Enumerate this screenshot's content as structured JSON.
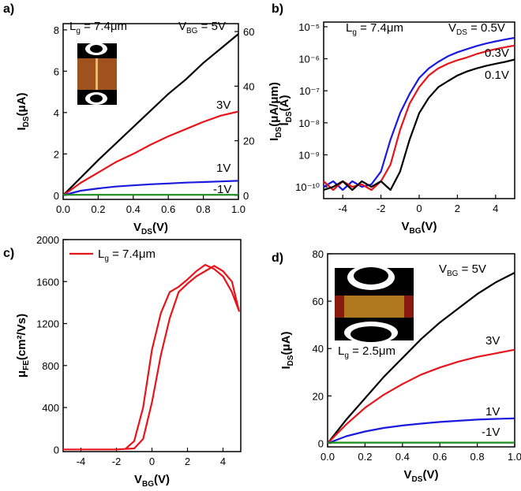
{
  "chart_data": [
    {
      "type": "line",
      "panel": "a)",
      "xlabel": {
        "text": "V",
        "sub": "DS",
        "after": "(V)"
      },
      "ylabel": {
        "text": "I",
        "sub": "DS",
        "after": "(μA)"
      },
      "y2label": {
        "text": "I",
        "sub": "DS",
        "after": "(μA/μm)"
      },
      "x": [
        0,
        0.1,
        0.2,
        0.3,
        0.4,
        0.5,
        0.6,
        0.7,
        0.8,
        0.9,
        1.0
      ],
      "xlim": [
        0,
        1.0
      ],
      "xticks": [
        {
          "value": 0,
          "label": "0.0"
        },
        0.2,
        0.4,
        0.6,
        0.8,
        {
          "value": 1,
          "label": "1.0"
        }
      ],
      "ylim": [
        -0.2,
        8.3
      ],
      "yticks": [
        0,
        2,
        4,
        6,
        8
      ],
      "y2lim": [
        -1.5,
        62.9
      ],
      "y2ticks": [
        0,
        20,
        40,
        60
      ],
      "series": [
        {
          "color": "#000000",
          "values": [
            0,
            0.85,
            1.7,
            2.5,
            3.3,
            4.1,
            4.9,
            5.6,
            6.4,
            7.1,
            7.8
          ]
        },
        {
          "color": "#e8141b",
          "values": [
            0,
            0.6,
            1.1,
            1.6,
            2.0,
            2.45,
            2.85,
            3.2,
            3.55,
            3.85,
            4.05
          ]
        },
        {
          "color": "#1a1adf",
          "values": [
            0,
            0.22,
            0.33,
            0.42,
            0.48,
            0.53,
            0.57,
            0.61,
            0.64,
            0.67,
            0.7
          ]
        },
        {
          "color": "#1a8c1a",
          "values": [
            0.02,
            0.02,
            0.02,
            0.02,
            0.02,
            0.02,
            0.02,
            0.02,
            0.02,
            0.02,
            0.02
          ]
        }
      ],
      "annotations": [
        {
          "text": "L",
          "sub": "g",
          "after": " = 7.4μm"
        },
        {
          "text": "V",
          "sub": "BG",
          "after": " = 5V"
        },
        {
          "text": "3V"
        },
        {
          "text": "1V"
        },
        {
          "text": "-1V"
        }
      ]
    },
    {
      "type": "line",
      "panel": "b)",
      "ylog": true,
      "xlabel": {
        "text": "V",
        "sub": "BG",
        "after": "(V)"
      },
      "ylabel": {
        "text": "I",
        "sub": "DS",
        "after": "(A)"
      },
      "x": [
        -5,
        -4.5,
        -4,
        -3.5,
        -3,
        -2.5,
        -2,
        -1.5,
        -1,
        -0.5,
        0,
        0.5,
        1,
        1.5,
        2,
        2.5,
        3,
        3.5,
        4,
        4.5,
        5
      ],
      "xlim": [
        -5,
        5
      ],
      "xticks": [
        -4,
        -2,
        0,
        2,
        4
      ],
      "ylim": [
        4.3e-11,
        1.4e-05
      ],
      "yticks": [
        {
          "value": 1e-10,
          "label": "10⁻¹⁰"
        },
        {
          "value": 1e-09,
          "label": "10⁻⁹"
        },
        {
          "value": 1e-08,
          "label": "10⁻⁸"
        },
        {
          "value": 1e-07,
          "label": "10⁻⁷"
        },
        {
          "value": 1e-06,
          "label": "10⁻⁶"
        },
        {
          "value": 1e-05,
          "label": "10⁻⁵"
        }
      ],
      "series": [
        {
          "color": "#1a1adf",
          "values": [
            1e-10,
            1.5e-10,
            8e-11,
            1.5e-10,
            1e-10,
            1.2e-10,
            3e-10,
            3e-09,
            2e-08,
            8e-08,
            2.5e-07,
            5e-07,
            8e-07,
            1.2e-06,
            1.6e-06,
            2e-06,
            2.5e-06,
            3e-06,
            3.5e-06,
            4e-06,
            4.5e-06
          ]
        },
        {
          "color": "#e8141b",
          "values": [
            1.5e-10,
            8e-11,
            1.5e-10,
            1e-10,
            1.2e-10,
            8e-11,
            1.5e-10,
            5e-10,
            6e-09,
            4e-08,
            1.3e-07,
            3e-07,
            5e-07,
            7e-07,
            9e-07,
            1.1e-06,
            1.4e-06,
            1.7e-06,
            2e-06,
            2.3e-06,
            2.6e-06
          ]
        },
        {
          "color": "#000000",
          "values": [
            8e-11,
            1e-10,
            1.5e-10,
            8e-11,
            1.5e-10,
            1e-10,
            1.5e-10,
            8e-11,
            3e-10,
            3e-09,
            2e-08,
            6e-08,
            1.3e-07,
            2e-07,
            3e-07,
            4e-07,
            5e-07,
            6e-07,
            7e-07,
            8e-07,
            9.5e-07
          ]
        }
      ],
      "annotations": [
        {
          "text": "L",
          "sub": "g",
          "after": " = 7.4μm"
        },
        {
          "text": "V",
          "sub": "DS",
          "after": " = 0.5V"
        },
        {
          "text": "0.3V"
        },
        {
          "text": "0.1V"
        }
      ]
    },
    {
      "type": "line",
      "panel": "c)",
      "legend": "upper left",
      "xlabel": {
        "text": "V",
        "sub": "BG",
        "after": "(V)"
      },
      "ylabel": {
        "text": "μ",
        "sub": "FE",
        "after": "(cm²/Vs)"
      },
      "x": [
        -5,
        -4,
        -3,
        -2,
        -1.5,
        -1,
        -0.5,
        0,
        0.5,
        1,
        1.5,
        2,
        2.5,
        3,
        3.5,
        4,
        4.5,
        4.9,
        4.5,
        4,
        3.5,
        3,
        2.5,
        2,
        1.5,
        1,
        0.5,
        0,
        -0.5,
        -1,
        -2,
        -3,
        -4,
        -5
      ],
      "xlim": [
        -5,
        5
      ],
      "xticks": [
        -4,
        -2,
        0,
        2,
        4
      ],
      "ylim": [
        -20,
        2000
      ],
      "yticks": [
        0,
        400,
        800,
        1200,
        1600,
        2000
      ],
      "series": [
        {
          "name": {
            "text": "L",
            "sub": "g",
            "after": " = 7.4μm"
          },
          "color": "#e8141b",
          "values": [
            0,
            0,
            0,
            0,
            5,
            80,
            400,
            950,
            1300,
            1500,
            1550,
            1620,
            1700,
            1760,
            1720,
            1650,
            1500,
            1320,
            1600,
            1700,
            1750,
            1700,
            1650,
            1580,
            1500,
            1250,
            900,
            450,
            100,
            10,
            0,
            0,
            0,
            0
          ]
        }
      ],
      "annotations": []
    },
    {
      "type": "line",
      "panel": "d)",
      "xlabel": {
        "text": "V",
        "sub": "DS",
        "after": "(V)"
      },
      "ylabel": {
        "text": "I",
        "sub": "DS",
        "after": "(μA)"
      },
      "x": [
        0,
        0.1,
        0.2,
        0.3,
        0.4,
        0.5,
        0.6,
        0.7,
        0.8,
        0.9,
        1.0
      ],
      "xlim": [
        0,
        1.0
      ],
      "xticks": [
        {
          "value": 0,
          "label": "0.0"
        },
        0.2,
        0.4,
        0.6,
        0.8,
        {
          "value": 1,
          "label": "1.0"
        }
      ],
      "ylim": [
        -1.5,
        80
      ],
      "yticks": [
        0,
        20,
        40,
        60,
        80
      ],
      "series": [
        {
          "color": "#000000",
          "values": [
            0,
            10,
            19,
            28,
            36,
            44,
            51,
            57,
            63,
            68,
            72
          ]
        },
        {
          "color": "#e8141b",
          "values": [
            0,
            8,
            15,
            20.5,
            25,
            29,
            32,
            34.5,
            36.5,
            38,
            39.5
          ]
        },
        {
          "color": "#1a1adf",
          "values": [
            0,
            3,
            5,
            6.5,
            7.5,
            8.3,
            9,
            9.5,
            10,
            10.3,
            10.5
          ]
        },
        {
          "color": "#1a8c1a",
          "values": [
            0.3,
            0.3,
            0.3,
            0.3,
            0.3,
            0.3,
            0.3,
            0.3,
            0.3,
            0.3,
            0.3
          ]
        }
      ],
      "annotations": [
        {
          "text": "V",
          "sub": "BG",
          "after": " = 5V"
        },
        {
          "text": "3V"
        },
        {
          "text": "1V"
        },
        {
          "text": "-1V"
        },
        {
          "text": "L",
          "sub": "g",
          "after": " = 2.5μm"
        }
      ]
    }
  ]
}
